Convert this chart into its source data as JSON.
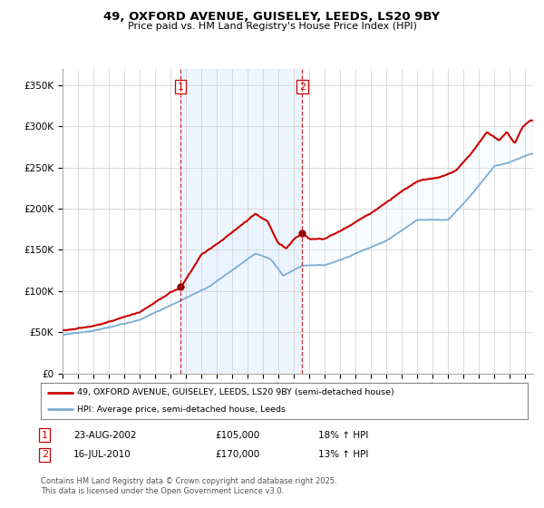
{
  "title": "49, OXFORD AVENUE, GUISELEY, LEEDS, LS20 9BY",
  "subtitle": "Price paid vs. HM Land Registry's House Price Index (HPI)",
  "legend_line1": "49, OXFORD AVENUE, GUISELEY, LEEDS, LS20 9BY (semi-detached house)",
  "legend_line2": "HPI: Average price, semi-detached house, Leeds",
  "footnote": "Contains HM Land Registry data © Crown copyright and database right 2025.\nThis data is licensed under the Open Government Licence v3.0.",
  "sale1_date": "23-AUG-2002",
  "sale1_price": 105000,
  "sale1_hpi": "18% ↑ HPI",
  "sale2_date": "16-JUL-2010",
  "sale2_price": 170000,
  "sale2_hpi": "13% ↑ HPI",
  "red_color": "#cc0000",
  "blue_color": "#7aadd4",
  "vline_color": "#cc0000",
  "marker_color": "#990000",
  "background_color": "#ffffff",
  "grid_color": "#cccccc",
  "shade_color": "#ddeeff",
  "ylim": [
    0,
    370000
  ],
  "yticks": [
    0,
    50000,
    100000,
    150000,
    200000,
    250000,
    300000,
    350000
  ],
  "ytick_labels": [
    "£0",
    "£50K",
    "£100K",
    "£150K",
    "£200K",
    "£250K",
    "£300K",
    "£350K"
  ],
  "xlim_start": 1995.0,
  "xlim_end": 2025.5,
  "vline1_x": 2002.645,
  "vline2_x": 2010.541,
  "marker1_x": 2002.645,
  "marker1_y": 105000,
  "marker2_x": 2010.541,
  "marker2_y": 170000
}
